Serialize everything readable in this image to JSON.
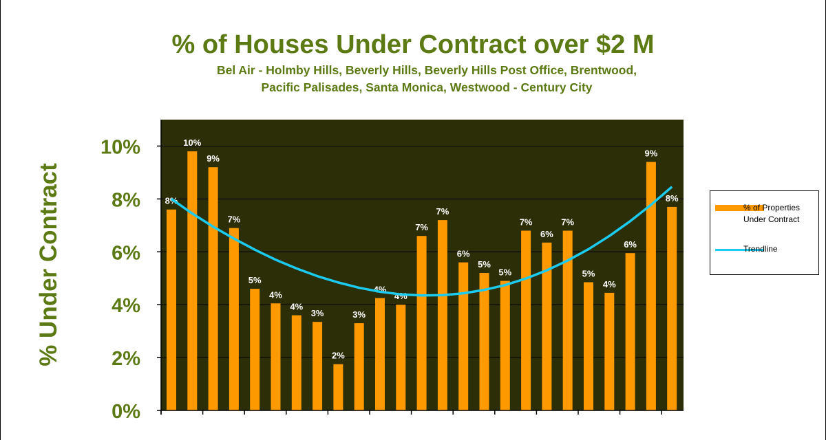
{
  "chart_data": {
    "type": "bar",
    "title": "% of Houses Under Contract over $2 M",
    "subtitle_lines": [
      "Bel Air - Holmby Hills, Beverly Hills, Beverly Hills Post Office, Brentwood,",
      "Pacific Palisades, Santa Monica, Westwood - Century City"
    ],
    "ylabel": "% Under Contract",
    "xlabel": "",
    "ylim": [
      0,
      11
    ],
    "yticks": [
      "0%",
      "2%",
      "4%",
      "6%",
      "8%",
      "10%"
    ],
    "ytick_values": [
      0,
      2,
      4,
      6,
      8,
      10
    ],
    "grid": true,
    "legend_position": "right",
    "colors": {
      "bar": "#ff9900",
      "trendline": "#1ccbf0",
      "plot_bg": "#2b2e07",
      "text": "#5b7a13"
    },
    "series": [
      {
        "name": "% of Properties Under Contract",
        "values": [
          7.6,
          9.8,
          9.2,
          6.9,
          4.6,
          4.05,
          3.6,
          3.35,
          1.75,
          3.3,
          4.25,
          4.0,
          6.6,
          7.2,
          5.6,
          5.2,
          4.9,
          6.8,
          6.35,
          6.8,
          4.85,
          4.45,
          5.95,
          9.4,
          7.7
        ],
        "data_labels": [
          "8%",
          "10%",
          "9%",
          "7%",
          "5%",
          "4%",
          "4%",
          "3%",
          "2%",
          "3%",
          "4%",
          "4%",
          "7%",
          "7%",
          "6%",
          "5%",
          "5%",
          "7%",
          "6%",
          "7%",
          "5%",
          "4%",
          "6%",
          "9%",
          "8%"
        ]
      },
      {
        "name": "Trendline",
        "type": "line",
        "values": [
          8.0,
          7.45,
          6.95,
          6.5,
          6.08,
          5.7,
          5.37,
          5.08,
          4.84,
          4.64,
          4.49,
          4.39,
          4.35,
          4.36,
          4.43,
          4.56,
          4.74,
          4.99,
          5.3,
          5.67,
          6.1,
          6.6,
          7.16,
          7.78,
          8.46
        ]
      }
    ],
    "legend": [
      "% of Properties Under Contract",
      "Trendline"
    ]
  }
}
